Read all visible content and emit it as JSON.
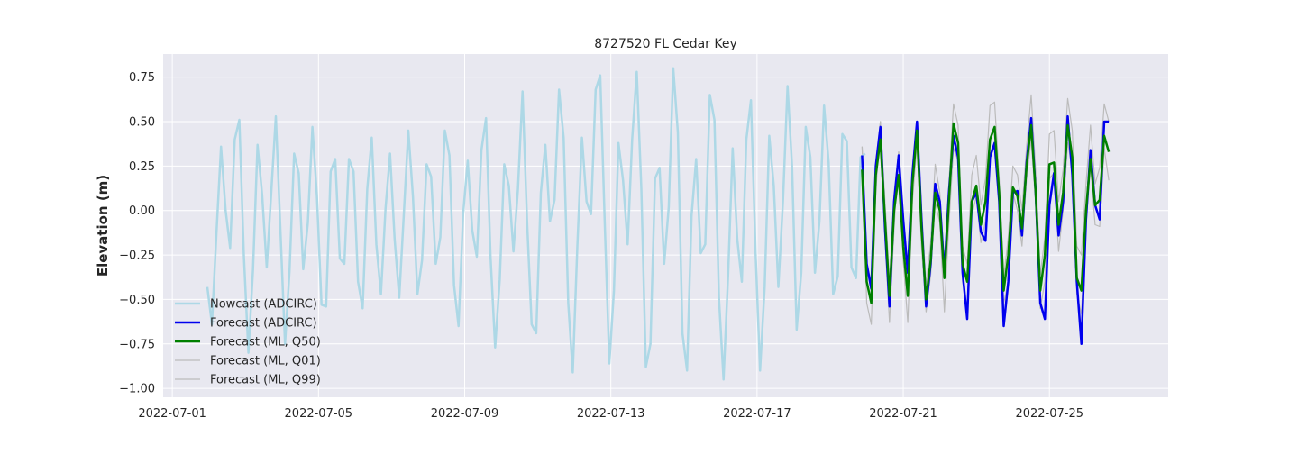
{
  "chart_data": {
    "type": "line",
    "title": "8727520 FL Cedar Key",
    "xlabel": "",
    "ylabel": "Elevation (m)",
    "xlim": [
      "2022-06-30T18:00",
      "2022-07-28T06:00"
    ],
    "ylim": [
      -1.05,
      0.88
    ],
    "x_ticks": [
      "2022-07-01",
      "2022-07-05",
      "2022-07-09",
      "2022-07-13",
      "2022-07-17",
      "2022-07-21",
      "2022-07-25"
    ],
    "y_ticks": [
      -1.0,
      -0.75,
      -0.5,
      -0.25,
      0.0,
      0.25,
      0.5,
      0.75
    ],
    "y_tick_labels": [
      "−1.00",
      "−0.75",
      "−0.50",
      "−0.25",
      "0.00",
      "0.25",
      "0.50",
      "0.75"
    ],
    "grid": true,
    "legend_position": "lower-left",
    "background_color": "#e8e8f0",
    "series": [
      {
        "name": "Nowcast (ADCIRC)",
        "color": "#add8e6",
        "width": 2.5,
        "x_start": "2022-07-01T23:00",
        "x_step_hours": 3,
        "values": [
          -0.43,
          -0.64,
          -0.13,
          0.36,
          0.0,
          -0.21,
          0.4,
          0.51,
          -0.25,
          -0.8,
          -0.33,
          0.37,
          0.09,
          -0.32,
          0.1,
          0.53,
          -0.11,
          -0.75,
          -0.34,
          0.32,
          0.21,
          -0.33,
          -0.07,
          0.47,
          0.08,
          -0.53,
          -0.54,
          0.22,
          0.29,
          -0.27,
          -0.3,
          0.29,
          0.22,
          -0.4,
          -0.55,
          0.12,
          0.41,
          -0.19,
          -0.47,
          0.01,
          0.32,
          -0.16,
          -0.49,
          -0.03,
          0.45,
          0.08,
          -0.47,
          -0.28,
          0.26,
          0.19,
          -0.3,
          -0.15,
          0.45,
          0.31,
          -0.42,
          -0.65,
          -0.02,
          0.28,
          -0.11,
          -0.26,
          0.34,
          0.52,
          -0.26,
          -0.77,
          -0.39,
          0.26,
          0.14,
          -0.23,
          0.12,
          0.67,
          -0.07,
          -0.64,
          -0.69,
          0.1,
          0.37,
          -0.06,
          0.06,
          0.68,
          0.41,
          -0.52,
          -0.91,
          -0.2,
          0.41,
          0.05,
          -0.02,
          0.68,
          0.76,
          -0.07,
          -0.86,
          -0.45,
          0.38,
          0.17,
          -0.19,
          0.4,
          0.78,
          0.12,
          -0.88,
          -0.75,
          0.18,
          0.24,
          -0.3,
          0.02,
          0.8,
          0.44,
          -0.69,
          -0.9,
          -0.03,
          0.29,
          -0.24,
          -0.19,
          0.65,
          0.51,
          -0.49,
          -0.95,
          -0.36,
          0.35,
          -0.16,
          -0.4,
          0.4,
          0.62,
          -0.23,
          -0.9,
          -0.43,
          0.42,
          0.14,
          -0.43,
          0.05,
          0.7,
          0.25,
          -0.67,
          -0.35,
          0.47,
          0.3,
          -0.35,
          -0.06,
          0.59,
          0.27,
          -0.47,
          -0.37,
          0.43,
          0.39,
          -0.32,
          -0.38,
          0.3,
          0.32
        ]
      },
      {
        "name": "Forecast (ADCIRC)",
        "color": "#0000ee",
        "width": 2.5,
        "x_start": "2022-07-19T21:00",
        "x_step_hours": 3,
        "values": [
          0.31,
          -0.3,
          -0.44,
          0.25,
          0.47,
          -0.1,
          -0.54,
          0.05,
          0.31,
          -0.05,
          -0.35,
          0.2,
          0.5,
          -0.05,
          -0.54,
          -0.3,
          0.15,
          0.05,
          -0.35,
          0.1,
          0.42,
          0.3,
          -0.35,
          -0.61,
          0.05,
          0.1,
          -0.12,
          -0.17,
          0.3,
          0.38,
          0.05,
          -0.65,
          -0.4,
          0.1,
          0.11,
          -0.14,
          0.27,
          0.52,
          0.1,
          -0.52,
          -0.61,
          0.03,
          0.21,
          -0.14,
          0.05,
          0.53,
          0.2,
          -0.4,
          -0.75,
          -0.05,
          0.34,
          0.03,
          -0.05,
          0.5,
          0.5
        ]
      },
      {
        "name": "Forecast (ML, Q50)",
        "color": "#008000",
        "width": 2.5,
        "x_start": "2022-07-19T21:00",
        "x_step_hours": 3,
        "values": [
          0.23,
          -0.4,
          -0.52,
          0.2,
          0.4,
          -0.05,
          -0.48,
          0.0,
          0.2,
          -0.2,
          -0.48,
          0.15,
          0.45,
          -0.1,
          -0.5,
          -0.28,
          0.1,
          0.0,
          -0.38,
          0.05,
          0.49,
          0.38,
          -0.3,
          -0.4,
          0.05,
          0.14,
          -0.08,
          0.05,
          0.4,
          0.47,
          0.1,
          -0.45,
          -0.25,
          0.13,
          0.08,
          -0.1,
          0.25,
          0.48,
          0.1,
          -0.45,
          -0.25,
          0.26,
          0.27,
          -0.08,
          0.1,
          0.48,
          0.3,
          -0.38,
          -0.45,
          0.0,
          0.29,
          0.03,
          0.06,
          0.42,
          0.33
        ]
      },
      {
        "name": "Forecast (ML, Q01)",
        "color": "#bbbbbb",
        "width": 1.2,
        "x_start": "2022-07-19T21:00",
        "x_step_hours": 3,
        "values": [
          0.36,
          -0.52,
          -0.64,
          0.1,
          0.5,
          -0.17,
          -0.63,
          -0.1,
          0.33,
          -0.28,
          -0.63,
          0.05,
          0.38,
          -0.2,
          -0.57,
          -0.36,
          0.05,
          -0.07,
          -0.57,
          -0.08,
          0.35,
          0.28,
          -0.4,
          -0.55,
          -0.03,
          0.08,
          -0.18,
          -0.06,
          0.33,
          0.38,
          0.03,
          -0.52,
          -0.4,
          0.1,
          0.0,
          -0.2,
          0.18,
          0.4,
          0.03,
          -0.55,
          -0.4,
          0.18,
          0.21,
          -0.23,
          0.0,
          0.38,
          0.24,
          -0.47,
          -0.58,
          -0.08,
          0.25,
          -0.08,
          -0.09,
          0.35,
          0.17
        ]
      },
      {
        "name": "Forecast (ML, Q99)",
        "color": "#bbbbbb",
        "width": 1.2,
        "x_start": "2022-07-19T21:00",
        "x_step_hours": 3,
        "values": [
          0.36,
          -0.3,
          -0.4,
          0.28,
          0.5,
          0.05,
          -0.4,
          0.1,
          0.33,
          -0.12,
          -0.38,
          0.25,
          0.48,
          0.02,
          -0.42,
          -0.18,
          0.26,
          0.1,
          -0.28,
          0.15,
          0.6,
          0.48,
          -0.2,
          -0.3,
          0.2,
          0.31,
          0.03,
          0.18,
          0.59,
          0.61,
          0.18,
          -0.38,
          -0.15,
          0.25,
          0.2,
          0.0,
          0.36,
          0.65,
          0.22,
          -0.36,
          -0.15,
          0.43,
          0.45,
          0.05,
          0.23,
          0.63,
          0.45,
          -0.2,
          -0.25,
          0.15,
          0.48,
          0.15,
          0.24,
          0.6,
          0.5
        ]
      }
    ]
  }
}
